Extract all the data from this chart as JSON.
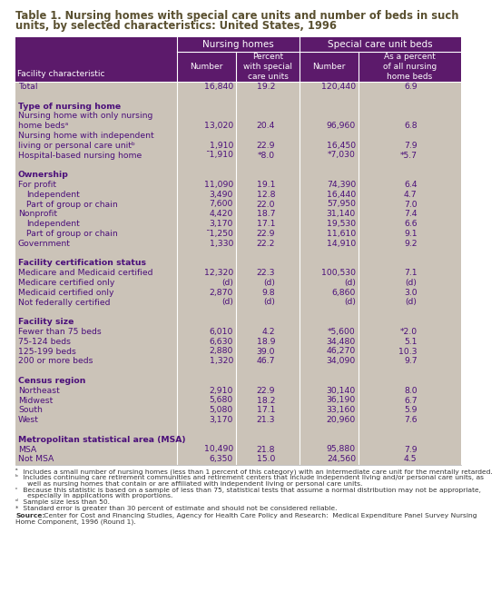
{
  "title_line1": "Table 1. Nursing homes with special care units and number of beds in such",
  "title_line2": "units, by selected characteristics: United States, 1996",
  "header_bg": "#5c1a6b",
  "table_bg": "#cbc3b8",
  "text_color": "#4b0f7a",
  "title_color": "#5a5030",
  "rows": [
    {
      "label": "Total",
      "indent": 0,
      "bold": false,
      "v": [
        "16,840",
        "19.2",
        "120,440",
        "6.9"
      ]
    },
    {
      "label": "",
      "indent": 0,
      "bold": false,
      "v": [
        "",
        "",
        "",
        ""
      ],
      "spacer": true
    },
    {
      "label": "Type of nursing home",
      "indent": 0,
      "bold": true,
      "v": [
        "",
        "",
        "",
        ""
      ]
    },
    {
      "label": "Nursing home with only nursing",
      "indent": 0,
      "bold": false,
      "v": [
        "",
        "",
        "",
        ""
      ]
    },
    {
      "label": "home bedsᵃ",
      "indent": 0,
      "bold": false,
      "v": [
        "13,020",
        "20.4",
        "96,960",
        "6.8"
      ]
    },
    {
      "label": "Nursing home with independent",
      "indent": 0,
      "bold": false,
      "v": [
        "",
        "",
        "",
        ""
      ]
    },
    {
      "label": "living or personal care unitᵇ",
      "indent": 0,
      "bold": false,
      "v": [
        "1,910",
        "22.9",
        "16,450",
        "7.9"
      ]
    },
    {
      "label": "Hospital-based nursing home",
      "indent": 0,
      "bold": false,
      "v": [
        "ˉ1,910",
        "*8.0",
        "*7,030",
        "*5.7"
      ]
    },
    {
      "label": "",
      "indent": 0,
      "bold": false,
      "v": [
        "",
        "",
        "",
        ""
      ],
      "spacer": true
    },
    {
      "label": "Ownership",
      "indent": 0,
      "bold": true,
      "v": [
        "",
        "",
        "",
        ""
      ]
    },
    {
      "label": "For profit",
      "indent": 0,
      "bold": false,
      "v": [
        "11,090",
        "19.1",
        "74,390",
        "6.4"
      ]
    },
    {
      "label": "Independent",
      "indent": 1,
      "bold": false,
      "v": [
        "3,490",
        "12.8",
        "16,440",
        "4.7"
      ]
    },
    {
      "label": "Part of group or chain",
      "indent": 1,
      "bold": false,
      "v": [
        "7,600",
        "22.0",
        "57,950",
        "7.0"
      ]
    },
    {
      "label": "Nonprofit",
      "indent": 0,
      "bold": false,
      "v": [
        "4,420",
        "18.7",
        "31,140",
        "7.4"
      ]
    },
    {
      "label": "Independent",
      "indent": 1,
      "bold": false,
      "v": [
        "3,170",
        "17.1",
        "19,530",
        "6.6"
      ]
    },
    {
      "label": "Part of group or chain",
      "indent": 1,
      "bold": false,
      "v": [
        "ˉ1,250",
        "22.9",
        "11,610",
        "9.1"
      ]
    },
    {
      "label": "Government",
      "indent": 0,
      "bold": false,
      "v": [
        "1,330",
        "22.2",
        "14,910",
        "9.2"
      ]
    },
    {
      "label": "",
      "indent": 0,
      "bold": false,
      "v": [
        "",
        "",
        "",
        ""
      ],
      "spacer": true
    },
    {
      "label": "Facility certification status",
      "indent": 0,
      "bold": true,
      "v": [
        "",
        "",
        "",
        ""
      ]
    },
    {
      "label": "Medicare and Medicaid certified",
      "indent": 0,
      "bold": false,
      "v": [
        "12,320",
        "22.3",
        "100,530",
        "7.1"
      ]
    },
    {
      "label": "Medicare certified only",
      "indent": 0,
      "bold": false,
      "v": [
        "(d)",
        "(d)",
        "(d)",
        "(d)"
      ]
    },
    {
      "label": "Medicaid certified only",
      "indent": 0,
      "bold": false,
      "v": [
        "2,870",
        "9.8",
        "6,860",
        "3.0"
      ]
    },
    {
      "label": "Not federally certified",
      "indent": 0,
      "bold": false,
      "v": [
        "(d)",
        "(d)",
        "(d)",
        "(d)"
      ]
    },
    {
      "label": "",
      "indent": 0,
      "bold": false,
      "v": [
        "",
        "",
        "",
        ""
      ],
      "spacer": true
    },
    {
      "label": "Facility size",
      "indent": 0,
      "bold": true,
      "v": [
        "",
        "",
        "",
        ""
      ]
    },
    {
      "label": "Fewer than 75 beds",
      "indent": 0,
      "bold": false,
      "v": [
        "6,010",
        "4.2",
        "*5,600",
        "*2.0"
      ]
    },
    {
      "label": "75-124 beds",
      "indent": 0,
      "bold": false,
      "v": [
        "6,630",
        "18.9",
        "34,480",
        "5.1"
      ]
    },
    {
      "label": "125-199 beds",
      "indent": 0,
      "bold": false,
      "v": [
        "2,880",
        "39.0",
        "46,270",
        "10.3"
      ]
    },
    {
      "label": "200 or more beds",
      "indent": 0,
      "bold": false,
      "v": [
        "1,320",
        "46.7",
        "34,090",
        "9.7"
      ]
    },
    {
      "label": "",
      "indent": 0,
      "bold": false,
      "v": [
        "",
        "",
        "",
        ""
      ],
      "spacer": true
    },
    {
      "label": "Census region",
      "indent": 0,
      "bold": true,
      "v": [
        "",
        "",
        "",
        ""
      ]
    },
    {
      "label": "Northeast",
      "indent": 0,
      "bold": false,
      "v": [
        "2,910",
        "22.9",
        "30,140",
        "8.0"
      ]
    },
    {
      "label": "Midwest",
      "indent": 0,
      "bold": false,
      "v": [
        "5,680",
        "18.2",
        "36,190",
        "6.7"
      ]
    },
    {
      "label": "South",
      "indent": 0,
      "bold": false,
      "v": [
        "5,080",
        "17.1",
        "33,160",
        "5.9"
      ]
    },
    {
      "label": "West",
      "indent": 0,
      "bold": false,
      "v": [
        "3,170",
        "21.3",
        "20,960",
        "7.6"
      ]
    },
    {
      "label": "",
      "indent": 0,
      "bold": false,
      "v": [
        "",
        "",
        "",
        ""
      ],
      "spacer": true
    },
    {
      "label": "Metropolitan statistical area (MSA)",
      "indent": 0,
      "bold": true,
      "v": [
        "",
        "",
        "",
        ""
      ]
    },
    {
      "label": "MSA",
      "indent": 0,
      "bold": false,
      "v": [
        "10,490",
        "21.8",
        "95,880",
        "7.9"
      ]
    },
    {
      "label": "Not MSA",
      "indent": 0,
      "bold": false,
      "v": [
        "6,350",
        "15.0",
        "24,560",
        "4.5"
      ]
    }
  ],
  "footnotes": [
    [
      "ᵃ",
      " Includes a small number of nursing homes (less than 1 percent of this category) with an intermediate care unit for the mentally retarded."
    ],
    [
      "ᵇ",
      " Includes continuing care retirement communities and retirement centers that include independent living and/or personal care units, as"
    ],
    [
      "",
      "   well as nursing homes that contain or are affiliated with independent living or personal care units."
    ],
    [
      "ᶜ",
      " Because this statistic is based on a sample of less than 75, statistical tests that assume a normal distribution may not be appropriate,"
    ],
    [
      "",
      "   especially in applications with proportions."
    ],
    [
      "ᵈ",
      " Sample size less than 50."
    ],
    [
      "*",
      " Standard error is greater than 30 percent of estimate and should not be considered reliable."
    ]
  ],
  "source_bold": "Source:",
  "source_rest": " Center for Cost and Financing Studies, Agency for Health Care Policy and Research:  Medical Expenditure Panel Survey Nursing",
  "source_line2": "Home Component, 1996 (Round 1)."
}
